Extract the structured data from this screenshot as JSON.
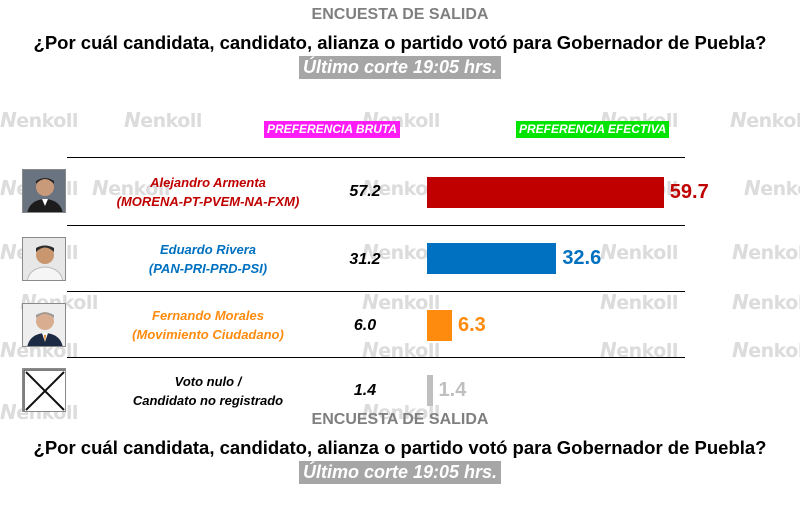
{
  "header": {
    "survey_title": "ENCUESTA DE SALIDA",
    "question": "¿Por cuál candidata, candidato, alianza o partido votó para Gobernador de Puebla?",
    "cutoff": "Último corte 19:05 hrs."
  },
  "footer": {
    "survey_title": "ENCUESTA DE SALIDA",
    "question": "¿Por cuál candidata, candidato, alianza o partido votó para Gobernador de Puebla?",
    "cutoff": "Último corte 19:05 hrs."
  },
  "watermark": {
    "mark": "N",
    "text": "enkoll"
  },
  "colors": {
    "armenta": "#c00000",
    "rivera": "#0070c0",
    "morales": "#fe8b0e",
    "nulo": "#bfbfbf",
    "bruta_label_bg": "#ff1cf6",
    "efectiva_label_bg": "#00e400",
    "cutoff_bg": "#a6a6a6"
  },
  "chart_data": {
    "type": "bar",
    "title": "¿Por cuál candidata, candidato, alianza o partido votó para Gobernador de Puebla?",
    "column_labels": {
      "raw": "PREFERENCIA BRUTA",
      "effective": "PREFERENCIA EFECTIVA"
    },
    "categories": [
      {
        "name": "Alejandro Armenta",
        "affiliation": "(MORENA-PT-PVEM-NA-FXM)"
      },
      {
        "name": "Eduardo Rivera",
        "affiliation": "(PAN-PRI-PRD-PSI)"
      },
      {
        "name": "Fernando Morales",
        "affiliation": "(Movimiento Ciudadano)"
      },
      {
        "name": "Voto nulo /",
        "affiliation": "Candidato no registrado"
      }
    ],
    "series": [
      {
        "name": "PREFERENCIA BRUTA",
        "values": [
          "57.2",
          "31.2",
          "6.0",
          "1.4"
        ]
      },
      {
        "name": "PREFERENCIA EFECTIVA",
        "values": [
          "59.7",
          "32.6",
          "6.3",
          "1.4"
        ]
      }
    ],
    "xlim": [
      0,
      60
    ]
  }
}
